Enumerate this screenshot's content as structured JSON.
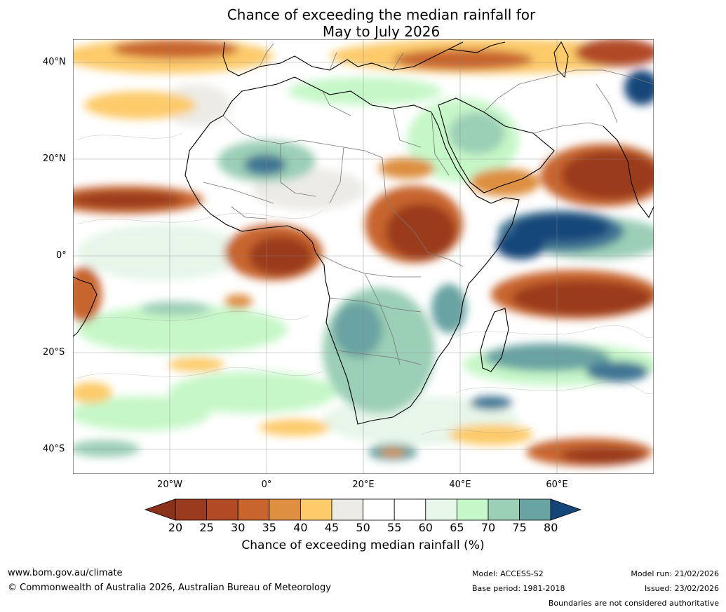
{
  "title": {
    "line1": "Chance of exceeding the median rainfall for",
    "line2": "May to July 2026"
  },
  "map": {
    "lat_labels": [
      "40°N",
      "20°N",
      "0°",
      "20°S",
      "40°S"
    ],
    "lat_values": [
      40,
      20,
      0,
      -20,
      -40
    ],
    "lon_labels": [
      "20°W",
      "0°",
      "20°E",
      "40°E",
      "60°E"
    ],
    "lon_values": [
      -20,
      0,
      20,
      40,
      60
    ],
    "extent": {
      "lon_min": -40,
      "lon_max": 80,
      "lat_min": -45,
      "lat_max": 45
    }
  },
  "colorbar": {
    "ticks": [
      "20",
      "25",
      "30",
      "35",
      "40",
      "45",
      "50",
      "55",
      "60",
      "65",
      "70",
      "75",
      "80"
    ],
    "colors": [
      "#9a3a1e",
      "#b24a26",
      "#c8652f",
      "#de8f40",
      "#fdcb6a",
      "#ecebe6",
      "#ffffff",
      "#ffffff",
      "#e7f6e9",
      "#c6f7c8",
      "#9bcfb6",
      "#69a3a3",
      "#3f7694"
    ],
    "under_color": "#8a321a",
    "over_color": "#15467a",
    "label": "Chance of exceeding median rainfall (%)"
  },
  "footer": {
    "website": "www.bom.gov.au/climate",
    "copyright": "© Commonwealth of Australia 2026, Australian Bureau of Meteorology",
    "model": "Model: ACCESS-S2",
    "base_period": "Base period: 1981-2018",
    "model_run": "Model run: 21/02/2026",
    "issued": "Issued: 23/02/2026",
    "disclaimer": "Boundaries are not considered authoritative"
  }
}
